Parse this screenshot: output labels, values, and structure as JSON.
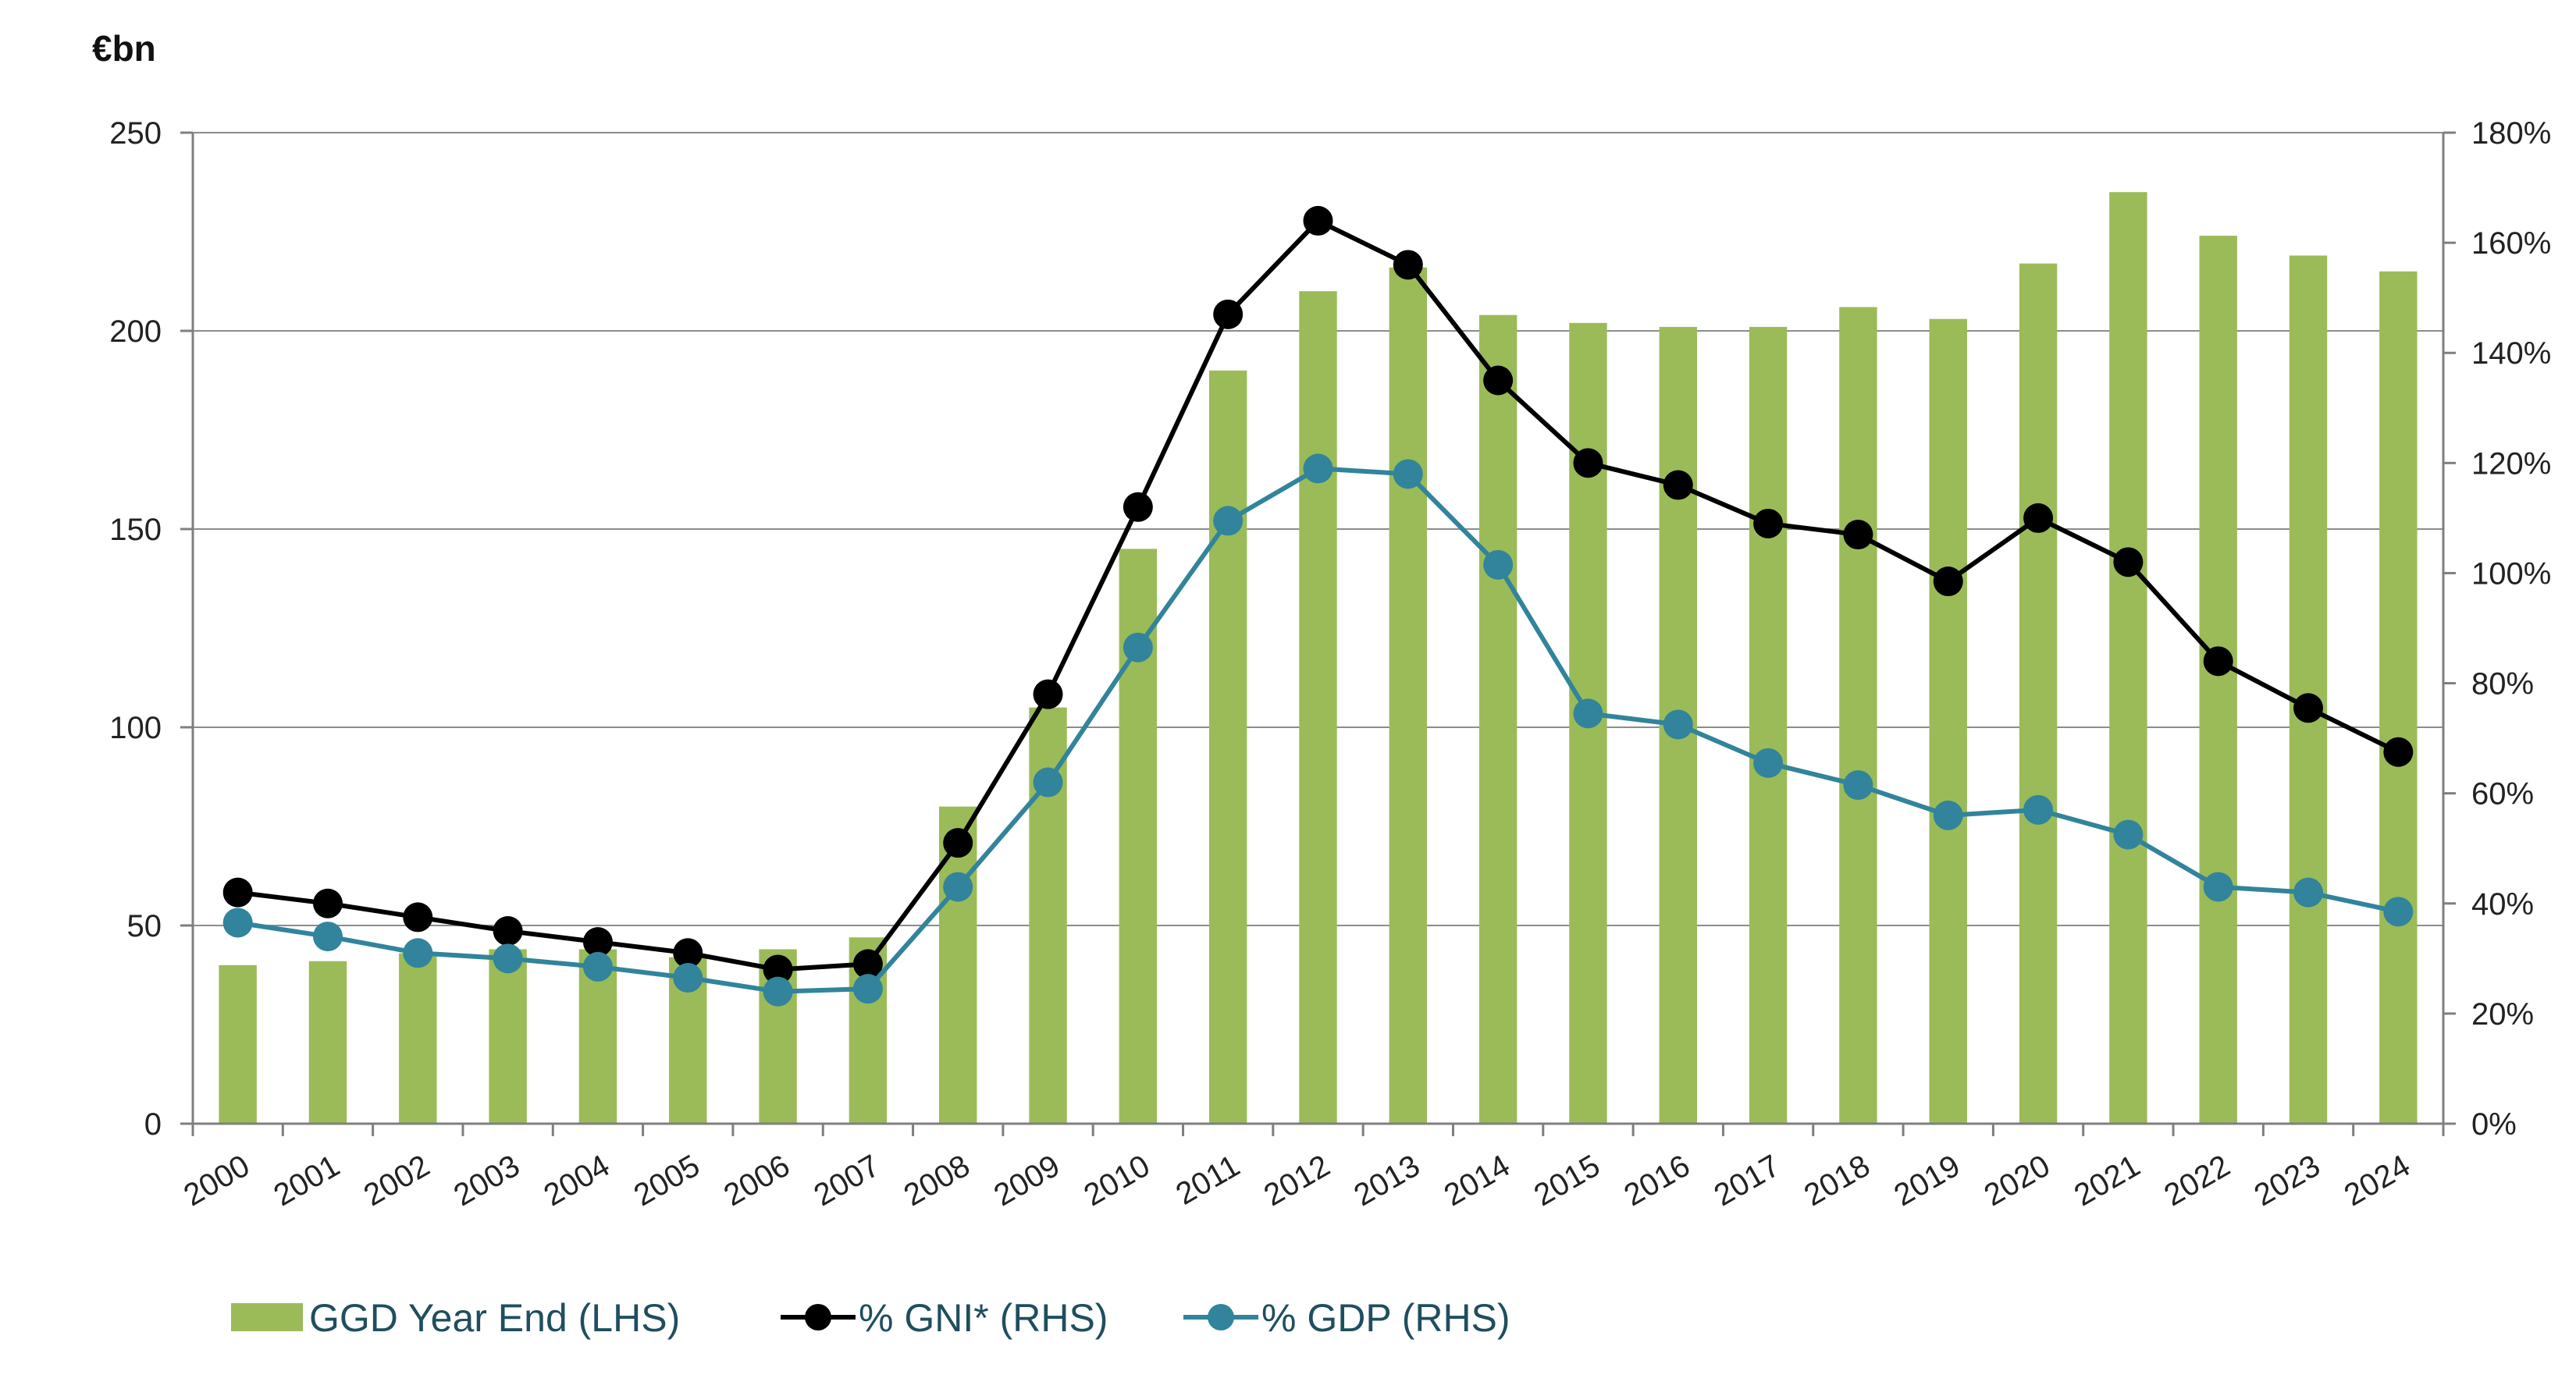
{
  "chart_data": {
    "type": "bar",
    "title": "",
    "unit_label": "€bn",
    "categories": [
      "2000",
      "2001",
      "2002",
      "2003",
      "2004",
      "2005",
      "2006",
      "2007",
      "2008",
      "2009",
      "2010",
      "2011",
      "2012",
      "2013",
      "2014",
      "2015",
      "2016",
      "2017",
      "2018",
      "2019",
      "2020",
      "2021",
      "2022",
      "2023",
      "2024"
    ],
    "left_axis": {
      "min": 0,
      "max": 250,
      "ticks": [
        "0",
        "50",
        "100",
        "150",
        "200",
        "250"
      ]
    },
    "right_axis": {
      "min": 0,
      "max": 180,
      "ticks": [
        "0%",
        "20%",
        "40%",
        "60%",
        "80%",
        "100%",
        "120%",
        "140%",
        "160%",
        "180%"
      ]
    },
    "grid": true,
    "legend_position": "bottom",
    "series": [
      {
        "name": "GGD Year End (LHS)",
        "type": "bar",
        "axis": "left",
        "color": "#9bbb59",
        "values": [
          40,
          41,
          43,
          44,
          44,
          42,
          44,
          47,
          80,
          105,
          145,
          190,
          210,
          216,
          204,
          202,
          201,
          201,
          206,
          203,
          217,
          235,
          224,
          219,
          215
        ]
      },
      {
        "name": "% GNI* (RHS)",
        "type": "line",
        "axis": "right",
        "color": "#000000",
        "values": [
          42,
          40,
          37.5,
          35,
          33,
          31,
          28,
          29,
          51,
          78,
          112,
          147,
          164,
          156,
          135,
          120,
          116,
          109,
          107,
          98.5,
          110,
          102,
          84,
          75.5,
          67.5
        ]
      },
      {
        "name": "% GDP (RHS)",
        "type": "line",
        "axis": "right",
        "color": "#31849b",
        "values": [
          36.5,
          34,
          31,
          30,
          28.5,
          26.5,
          24,
          24.5,
          43,
          62,
          86.5,
          109.5,
          119,
          118,
          101.5,
          74.5,
          72.5,
          65.5,
          61.5,
          56,
          57,
          52.5,
          43,
          42,
          38.5
        ]
      }
    ]
  }
}
